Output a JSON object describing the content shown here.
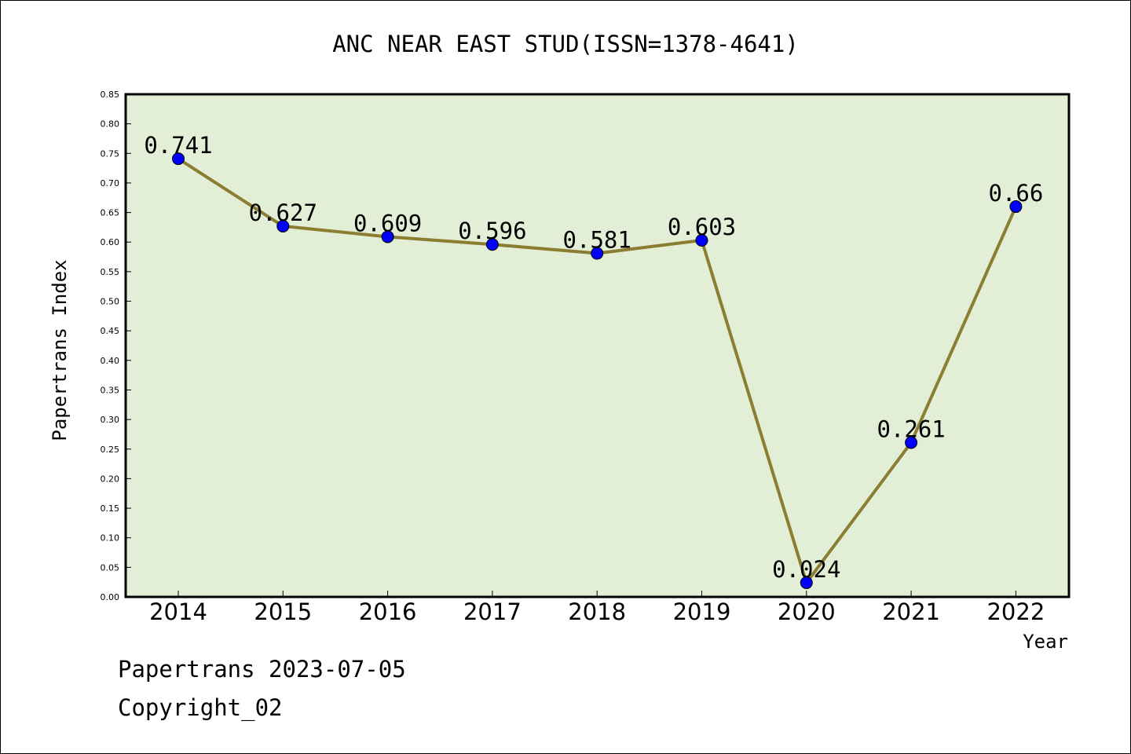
{
  "chart_data": {
    "type": "line",
    "title": "ANC NEAR EAST STUD(ISSN=1378-4641)",
    "xlabel": "Year",
    "ylabel": "Papertrans Index",
    "categories": [
      "2014",
      "2015",
      "2016",
      "2017",
      "2018",
      "2019",
      "2020",
      "2021",
      "2022"
    ],
    "values": [
      0.741,
      0.627,
      0.609,
      0.596,
      0.581,
      0.603,
      0.024,
      0.261,
      0.66
    ],
    "data_labels": [
      "0.741",
      "0.627",
      "0.609",
      "0.596",
      "0.581",
      "0.603",
      "0.024",
      "0.261",
      "0.66"
    ],
    "ylim": [
      0,
      0.85
    ],
    "yticks": [
      "0.00",
      "0.05",
      "0.10",
      "0.15",
      "0.20",
      "0.25",
      "0.30",
      "0.35",
      "0.40",
      "0.45",
      "0.50",
      "0.55",
      "0.60",
      "0.65",
      "0.70",
      "0.75",
      "0.80",
      "0.85"
    ],
    "grid": false,
    "legend": "none",
    "colors": {
      "plot_background": "#e2efd6",
      "line": "#8b7d32",
      "marker": "#0000ff"
    }
  },
  "footer": {
    "date_line": "Papertrans 2023-07-05",
    "copyright_line": "Copyright_02"
  }
}
